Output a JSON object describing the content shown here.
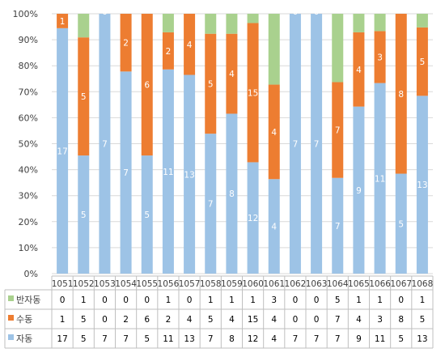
{
  "colors": {
    "semi_auto": "#a9d18e",
    "manual": "#ed7d31",
    "auto": "#9dc3e6",
    "grid": "#d9d9d9",
    "axis_text": "#404040",
    "label_text": "#ffffff"
  },
  "chart_data": {
    "type": "bar",
    "stacked": "percent",
    "title": "",
    "xlabel": "",
    "ylabel": "",
    "ylim": [
      0,
      100
    ],
    "y_ticks": [
      "0%",
      "10%",
      "20%",
      "30%",
      "40%",
      "50%",
      "60%",
      "70%",
      "80%",
      "90%",
      "100%"
    ],
    "grid": true,
    "legend": "table-left",
    "categories": [
      "1051",
      "1052",
      "1053",
      "1054",
      "1055",
      "1056",
      "1057",
      "1058",
      "1059",
      "1060",
      "1061",
      "1062",
      "1063",
      "1064",
      "1065",
      "1066",
      "1067",
      "1068"
    ],
    "series": [
      {
        "name": "반자동",
        "color": "#a9d18e",
        "values": [
          0,
          1,
          0,
          0,
          0,
          1,
          0,
          1,
          1,
          1,
          3,
          0,
          0,
          5,
          1,
          1,
          0,
          1
        ]
      },
      {
        "name": "수동",
        "color": "#ed7d31",
        "values": [
          1,
          5,
          0,
          2,
          6,
          2,
          4,
          5,
          4,
          15,
          4,
          0,
          0,
          7,
          4,
          3,
          8,
          5
        ]
      },
      {
        "name": "자동",
        "color": "#9dc3e6",
        "values": [
          17,
          5,
          7,
          7,
          5,
          11,
          13,
          7,
          8,
          12,
          4,
          7,
          7,
          7,
          9,
          11,
          5,
          13
        ]
      }
    ],
    "bar_labels": {
      "자동": [
        "17",
        "5",
        "7",
        "7",
        "5",
        "11",
        "13",
        "7",
        "8",
        "12",
        "4",
        "7",
        "7",
        "7",
        "9",
        "11",
        "5",
        "13"
      ],
      "수동": [
        "1",
        "5",
        "0",
        "2",
        "6",
        "2",
        "4",
        "5",
        "4",
        "15",
        "4",
        "0",
        "0",
        "7",
        "4",
        "3",
        "8",
        "5"
      ]
    }
  }
}
